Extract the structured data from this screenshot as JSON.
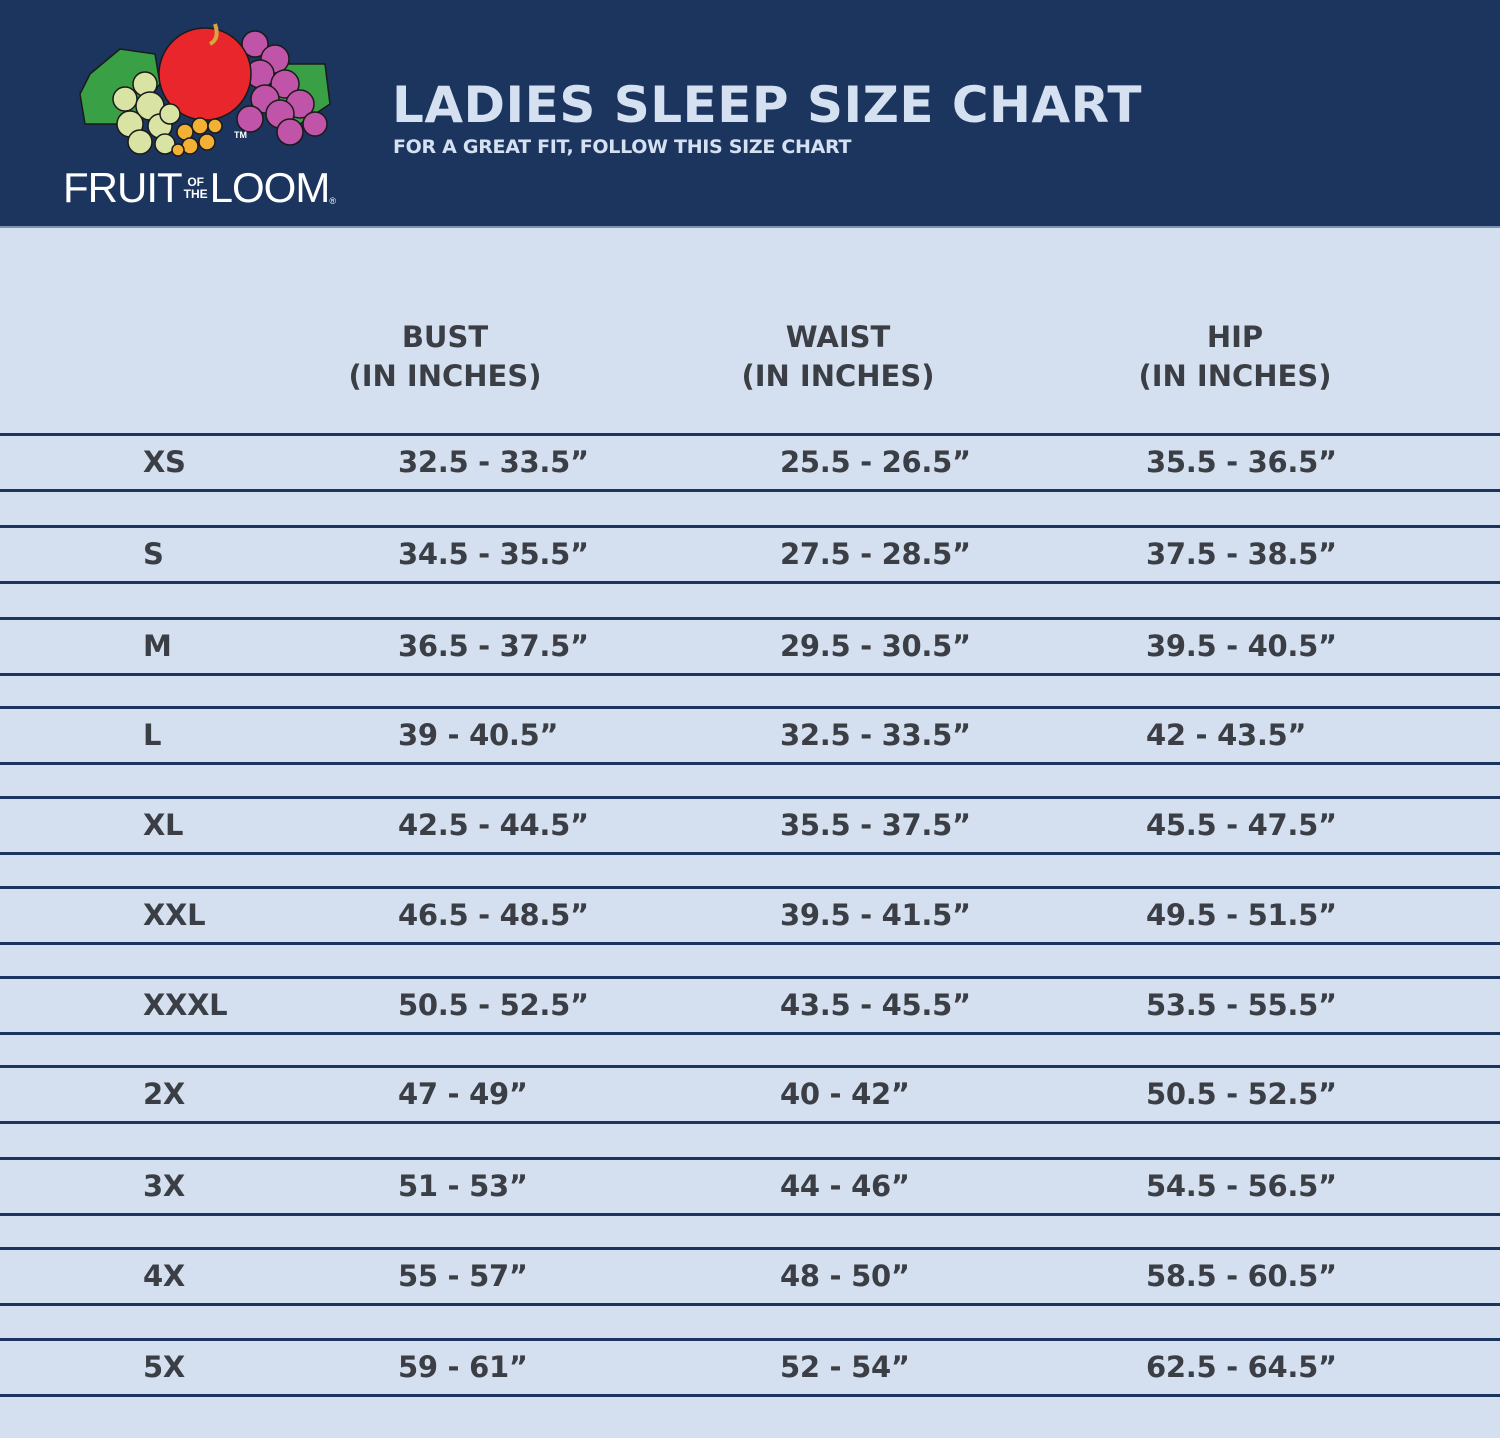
{
  "header": {
    "brand": {
      "word1": "FRUIT",
      "of": "OF",
      "the": "THE",
      "word2": "LOOM",
      "tm": "TM",
      "reg": "®"
    },
    "title": "LADIES SLEEP SIZE CHART",
    "subtitle": "FOR A GREAT FIT, FOLLOW THIS SIZE CHART",
    "colors": {
      "background": "#1b355f",
      "title": "#d5e1f1"
    }
  },
  "table": {
    "columns": [
      {
        "name": "BUST",
        "unit": "(IN INCHES)"
      },
      {
        "name": "WAIST",
        "unit": "(IN INCHES)"
      },
      {
        "name": "HIP",
        "unit": "(IN INCHES)"
      }
    ],
    "rows": [
      {
        "size": "XS",
        "bust": "32.5 - 33.5”",
        "waist": "25.5 - 26.5”",
        "hip": "35.5 - 36.5”"
      },
      {
        "size": "S",
        "bust": "34.5 - 35.5”",
        "waist": "27.5 - 28.5”",
        "hip": "37.5 - 38.5”"
      },
      {
        "size": "M",
        "bust": "36.5 - 37.5”",
        "waist": "29.5 - 30.5”",
        "hip": "39.5 - 40.5”"
      },
      {
        "size": "L",
        "bust": "39 - 40.5”",
        "waist": "32.5 - 33.5”",
        "hip": "42 - 43.5”"
      },
      {
        "size": "XL",
        "bust": "42.5 - 44.5”",
        "waist": "35.5 - 37.5”",
        "hip": "45.5 - 47.5”"
      },
      {
        "size": "XXL",
        "bust": "46.5 - 48.5”",
        "waist": "39.5 - 41.5”",
        "hip": "49.5 - 51.5”"
      },
      {
        "size": "XXXL",
        "bust": "50.5 - 52.5”",
        "waist": "43.5 - 45.5”",
        "hip": "53.5 - 55.5”"
      },
      {
        "size": "2X",
        "bust": "47 - 49”",
        "waist": "40 - 42”",
        "hip": "50.5 - 52.5”"
      },
      {
        "size": "3X",
        "bust": "51 - 53”",
        "waist": "44 - 46”",
        "hip": "54.5 - 56.5”"
      },
      {
        "size": "4X",
        "bust": "55 - 57”",
        "waist": "48 - 50”",
        "hip": "58.5 - 60.5”"
      },
      {
        "size": "5X",
        "bust": "59 - 61”",
        "waist": "52 - 54”",
        "hip": "62.5 - 64.5”"
      }
    ],
    "colors": {
      "background": "#d4e0f0",
      "rule": "#1b355f",
      "text": "#3b3e45"
    }
  }
}
